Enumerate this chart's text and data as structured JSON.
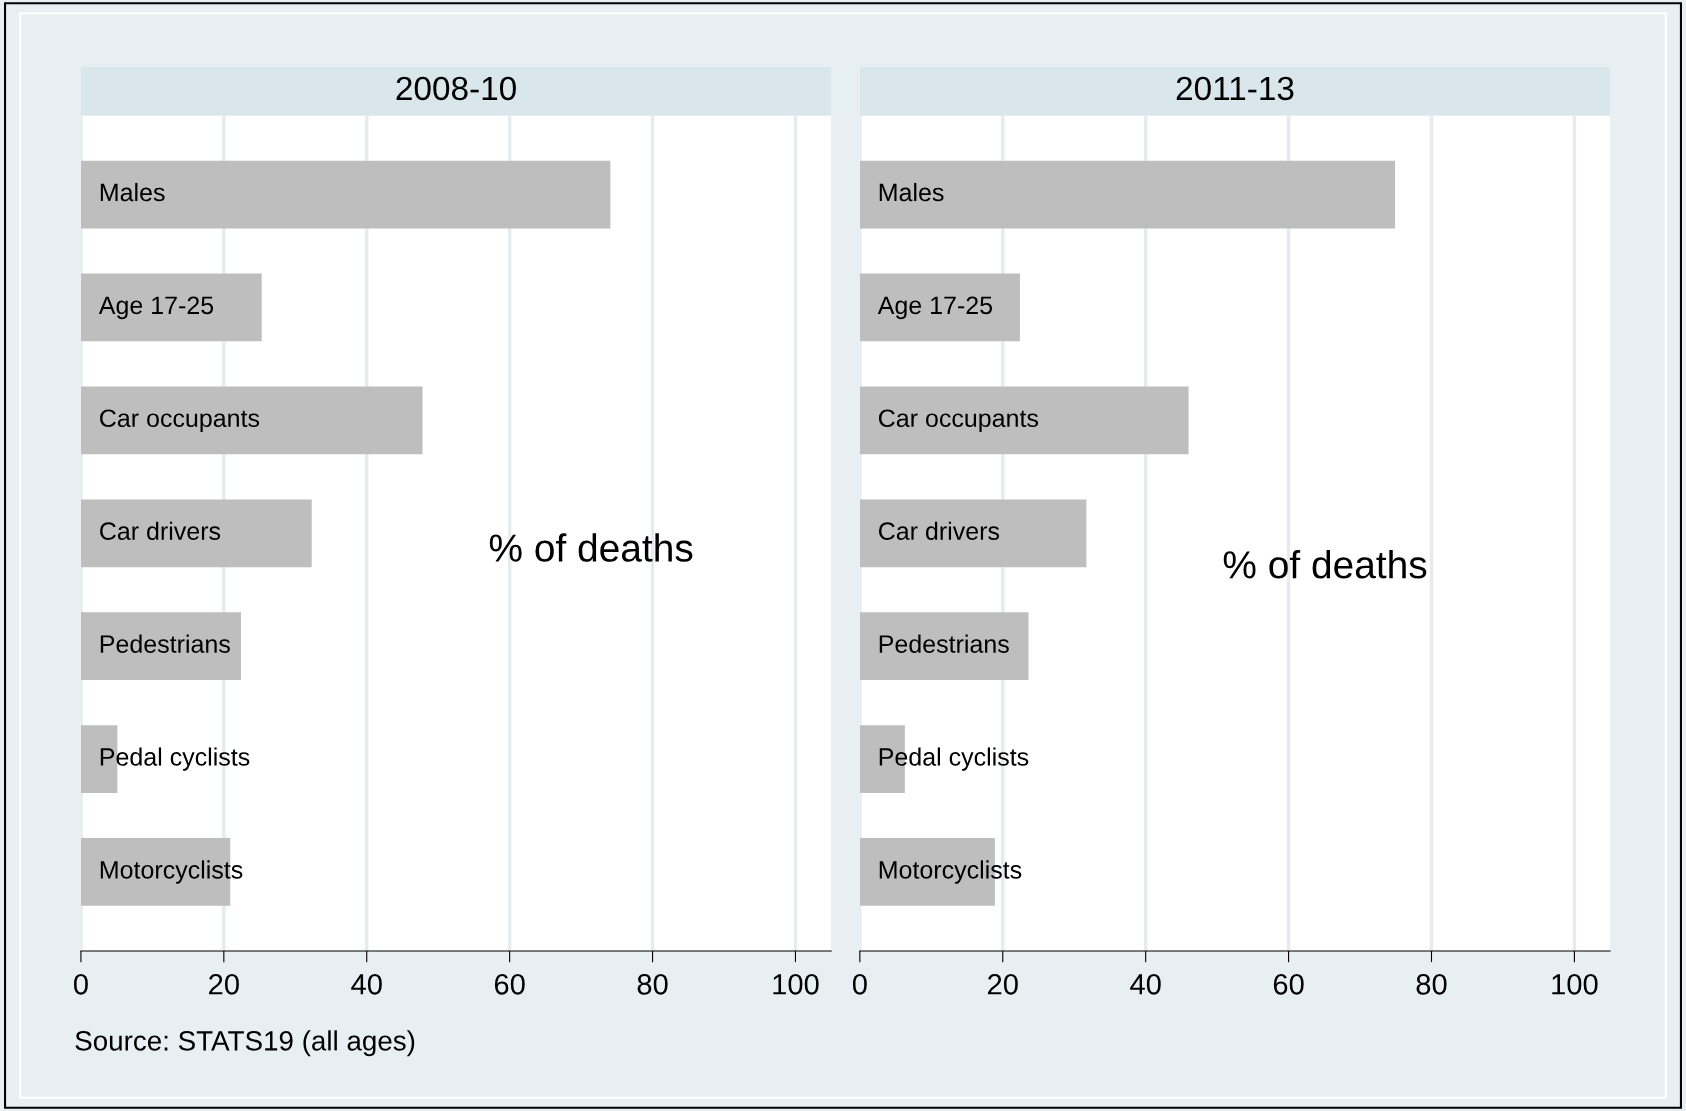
{
  "chart_data": [
    {
      "type": "bar",
      "orientation": "horizontal",
      "title": "2008-10",
      "xlabel": "% of deaths",
      "categories": [
        "Males",
        "Age 17-25",
        "Car occupants",
        "Car drivers",
        "Pedestrians",
        "Pedal cyclists",
        "Motorcyclists"
      ],
      "values": [
        74.1,
        25.3,
        47.8,
        32.3,
        22.4,
        5.1,
        20.9
      ],
      "color": "#bebebe",
      "xlim": [
        0,
        105
      ],
      "xticks": [
        0,
        20,
        40,
        60,
        80,
        100
      ],
      "grid": "x",
      "annotations": [
        "Source: STATS19 (all ages)"
      ]
    },
    {
      "type": "bar",
      "orientation": "horizontal",
      "title": "2011-13",
      "xlabel": "% of deaths",
      "categories": [
        "Males",
        "Age 17-25",
        "Car occupants",
        "Car drivers",
        "Pedestrians",
        "Pedal cyclists",
        "Motorcyclists"
      ],
      "values": [
        74.9,
        22.4,
        46.0,
        31.7,
        23.6,
        6.3,
        18.9
      ],
      "color": "#bebebe",
      "xlim": [
        0,
        105
      ],
      "xticks": [
        0,
        20,
        40,
        60,
        80,
        100
      ],
      "grid": "x"
    }
  ]
}
